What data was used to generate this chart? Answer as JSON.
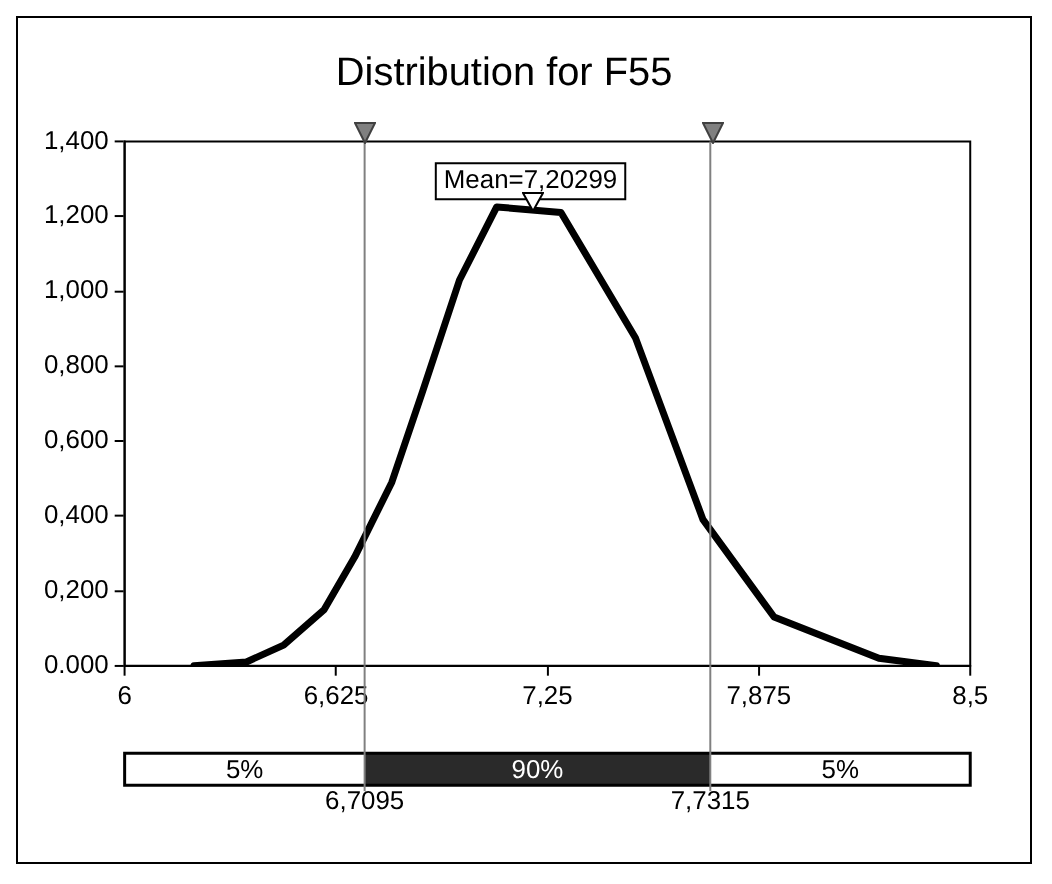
{
  "chart_data": {
    "type": "line",
    "title": "Distribution for F55",
    "x": [
      6.205,
      6.36,
      6.47,
      6.59,
      6.68,
      6.79,
      6.88,
      6.99,
      7.1,
      7.29,
      7.51,
      7.71,
      7.92,
      8.23,
      8.4
    ],
    "series": [
      {
        "color": "#000000",
        "values": [
          0,
          0.01,
          0.055,
          0.15,
          0.29,
          0.49,
          0.73,
          1.03,
          1.225,
          1.21,
          0.876,
          0.39,
          0.13,
          0.02,
          0
        ]
      }
    ],
    "xlim": [
      6,
      8.5
    ],
    "xticks": [
      6,
      {
        "value": 6.625,
        "label": "6,625"
      },
      {
        "value": 7.25,
        "label": "7,25"
      },
      {
        "value": 7.875,
        "label": "7,875"
      },
      {
        "value": 8.5,
        "label": "8,5"
      }
    ],
    "ylim": [
      0,
      1.4
    ],
    "yticks": [
      {
        "value": 0,
        "label": "0.000"
      },
      {
        "value": 0.2,
        "label": "0,200"
      },
      {
        "value": 0.4,
        "label": "0,400"
      },
      {
        "value": 0.6,
        "label": "0,600"
      },
      {
        "value": 0.8,
        "label": "0,800"
      },
      {
        "value": 1,
        "label": "1,000"
      },
      {
        "value": 1.2,
        "label": "1,200"
      },
      {
        "value": 1.4,
        "label": "1,400"
      }
    ],
    "ref_lines": [
      {
        "axis": "x",
        "value": 6.7095,
        "label": "6,7095",
        "color": "#808080"
      },
      {
        "axis": "x",
        "value": 7.7315,
        "label": "7,7315",
        "color": "#808080"
      }
    ],
    "annotations": [
      "Mean=7,20299",
      "5%",
      "90%",
      "5%"
    ],
    "grid": false,
    "legend": false,
    "marker": "none",
    "line_style": "solid"
  }
}
